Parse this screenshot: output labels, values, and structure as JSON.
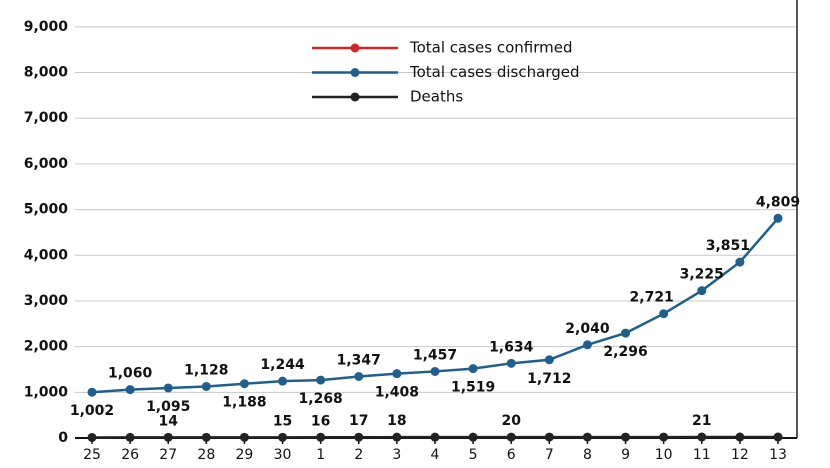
{
  "chart_data": {
    "type": "line",
    "categories": [
      "25",
      "26",
      "27",
      "28",
      "29",
      "30",
      "1",
      "2",
      "3",
      "4",
      "5",
      "6",
      "7",
      "8",
      "9",
      "10",
      "11",
      "12",
      "13"
    ],
    "series": [
      {
        "name": "Total cases confirmed",
        "color": "#d42426",
        "values": [
          null,
          null,
          null,
          null,
          null,
          null,
          null,
          null,
          null,
          null,
          null,
          null,
          null,
          null,
          null,
          null,
          null,
          null,
          null
        ]
      },
      {
        "name": "Total cases discharged",
        "color": "#1f5f8e",
        "values": [
          1002,
          1060,
          1095,
          1128,
          1188,
          1244,
          1268,
          1347,
          1408,
          1457,
          1519,
          1634,
          1712,
          2040,
          2296,
          2721,
          3225,
          3851,
          4809
        ],
        "value_labels": [
          "1,002",
          "1,060",
          "1,095",
          "1,128",
          "1,188",
          "1,244",
          "1,268",
          "1,347",
          "1,408",
          "1,457",
          "1,519",
          "1,634",
          "1,712",
          "2,040",
          "2,296",
          "2,721",
          "3,225",
          "3,851",
          "4,809"
        ]
      },
      {
        "name": "Deaths",
        "color": "#222222",
        "values": [
          12,
          13,
          14,
          14,
          14,
          15,
          16,
          17,
          18,
          18,
          19,
          20,
          20,
          20,
          20,
          20,
          21,
          21,
          21
        ],
        "value_labels": [
          null,
          null,
          "14",
          null,
          null,
          "15",
          "16",
          "17",
          "18",
          null,
          null,
          "20",
          null,
          null,
          null,
          null,
          "21",
          null,
          null
        ]
      }
    ],
    "ylim": [
      0,
      9500
    ],
    "yticks": [
      0,
      {
        "value": 1000,
        "label": "1,000"
      },
      {
        "value": 2000,
        "label": "2,000"
      },
      {
        "value": 3000,
        "label": "3,000"
      },
      {
        "value": 4000,
        "label": "4,000"
      },
      {
        "value": 5000,
        "label": "5,000"
      },
      {
        "value": 6000,
        "label": "6,000"
      },
      {
        "value": 7000,
        "label": "7,000"
      },
      {
        "value": 8000,
        "label": "8,000"
      },
      {
        "value": 9000,
        "label": "9,000"
      }
    ],
    "grid": true
  }
}
